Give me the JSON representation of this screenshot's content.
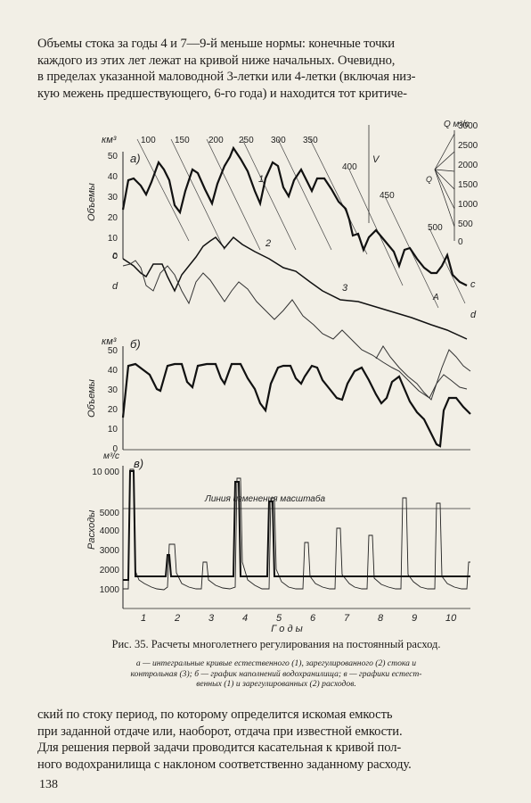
{
  "top_text": [
    "Объемы стока за годы 4 и 7—9-й меньше нормы: конечные точки",
    "каждого из этих лет лежат на кривой ниже начальных. Очевидно,",
    "в пределах указанной маловодной 3-летки или 4-летки (включая низ-",
    "кую межень предшествующего, 6-го года) и находится тот критиче-"
  ],
  "figure": {
    "panel_a": {
      "label": "а)",
      "y_unit": "км³",
      "y_axis_label": "Объемы",
      "y_ticks": [
        "50",
        "40",
        "30",
        "20",
        "10",
        "0"
      ],
      "rate_labels": [
        "100",
        "150",
        "200",
        "250",
        "300",
        "350",
        "400",
        "450",
        "500"
      ],
      "curve_labels": [
        "1",
        "2",
        "3"
      ],
      "letter_labels": [
        "c",
        "d",
        "c",
        "d",
        "A",
        "V",
        "Q"
      ],
      "scale_unit": "Q м³/с",
      "scale_ticks": [
        "3000",
        "2500",
        "2000",
        "1500",
        "1000",
        "500",
        "0"
      ]
    },
    "panel_b": {
      "label": "б)",
      "y_unit": "км³",
      "y_axis_label": "Объемы",
      "y_ticks": [
        "50",
        "40",
        "30",
        "20",
        "10",
        "0"
      ]
    },
    "panel_c": {
      "label": "в)",
      "y_unit": "м³/с",
      "y_axis_label": "Расходы",
      "y_ticks": [
        "10 000",
        "5000",
        "4000",
        "3000",
        "2000",
        "1000"
      ],
      "annotation": "Линия изменения масштаба",
      "x_ticks": [
        "1",
        "2",
        "3",
        "4",
        "5",
        "6",
        "7",
        "8",
        "9",
        "10"
      ],
      "x_axis_label": "Г о д ы"
    }
  },
  "caption_title": "Рис. 35. Расчеты многолетнего регулирования на постоянный расход.",
  "caption_text": [
    "а — интегральные кривые естественного (1), зарегулированного (2) стока и",
    "контрольная (3); б — график наполнений водохранилища; в — графики естест-",
    "венных (1) и зарегулированных (2) расходов."
  ],
  "bottom_text": [
    "ский по стоку период, по которому определится искомая емкость",
    "при заданной отдаче или, наоборот, отдача при известной емкости.",
    "Для решения первой задачи проводится касательная к кривой пол-",
    "ного водохранилища с наклоном соответственно заданному расходу."
  ],
  "page_number": "138"
}
